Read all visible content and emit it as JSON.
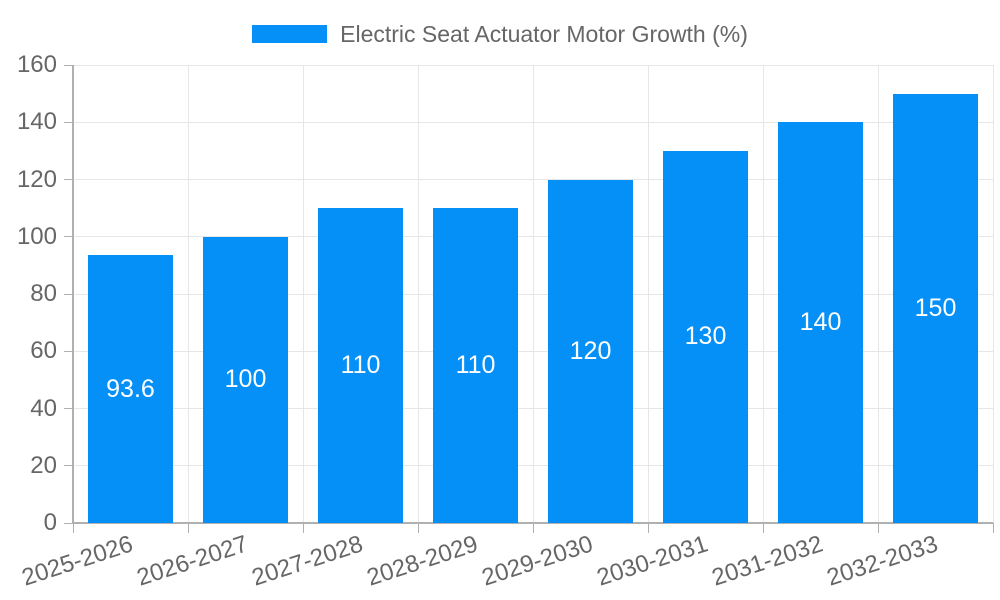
{
  "legend": {
    "label": "Electric Seat Actuator Motor Growth (%)"
  },
  "chart_data": {
    "type": "bar",
    "title": "Electric Seat Actuator Motor Growth (%)",
    "categories": [
      "2025-2026",
      "2026-2027",
      "2027-2028",
      "2028-2029",
      "2029-2030",
      "2030-2031",
      "2031-2032",
      "2032-2033"
    ],
    "values": [
      93.6,
      100,
      110,
      110,
      120,
      130,
      140,
      150
    ],
    "xlabel": "",
    "ylabel": "",
    "ylim": [
      0,
      160
    ],
    "ytick_step": 20,
    "yticks": [
      0,
      20,
      40,
      60,
      80,
      100,
      120,
      140,
      160
    ],
    "grid": true,
    "legend_position": "top",
    "bar_color": "#0590f8",
    "grid_color": "#e6e6e6",
    "axis_color": "#b0b0b0",
    "tick_label_color": "#666666",
    "bar_label_color": "#ffffff"
  }
}
